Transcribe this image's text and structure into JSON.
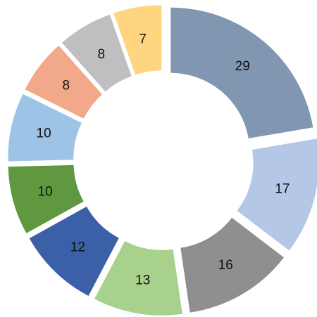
{
  "chart_data": {
    "type": "donut",
    "values": [
      29,
      17,
      16,
      13,
      12,
      10,
      10,
      8,
      8,
      7
    ],
    "colors": [
      "#8096b1",
      "#b4c7e7",
      "#8f8f8f",
      "#a9d18e",
      "#3b60a8",
      "#609841",
      "#9dc3e6",
      "#f1a98a",
      "#bfbfbf",
      "#ffd580"
    ]
  }
}
